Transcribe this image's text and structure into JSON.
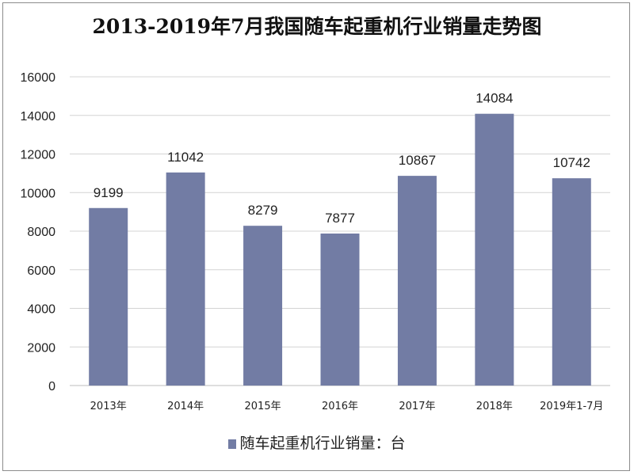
{
  "chart_data": {
    "type": "bar",
    "title": "2013-2019年7月我国随车起重机行业销量走势图",
    "categories": [
      "2013年",
      "2014年",
      "2015年",
      "2016年",
      "2017年",
      "2018年",
      "2019年1-7月"
    ],
    "series": [
      {
        "name": "随车起重机行业销量：台",
        "values": [
          9199,
          11042,
          8279,
          7877,
          10867,
          14084,
          10742
        ]
      }
    ],
    "ylim": [
      0,
      16000
    ],
    "yticks": [
      0,
      2000,
      4000,
      6000,
      8000,
      10000,
      12000,
      14000,
      16000
    ],
    "grid": true,
    "legend_position": "bottom",
    "bar_color": "#727ca4"
  }
}
